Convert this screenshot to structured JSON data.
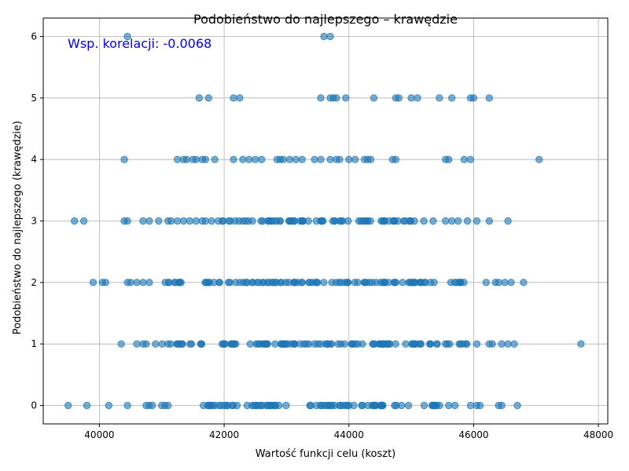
{
  "chart_data": {
    "type": "scatter",
    "title": "Podobieństwo do najlepszego – krawędzie",
    "xlabel": "Wartość funkcji celu (koszt)",
    "ylabel": "Podobieństwo do najlepszego (krawędzie)",
    "xlim": [
      39100,
      48150
    ],
    "ylim": [
      -0.3,
      6.3
    ],
    "xticks": [
      40000,
      42000,
      44000,
      46000,
      48000
    ],
    "xtick_labels": [
      "40000",
      "42000",
      "44000",
      "46000",
      "48000"
    ],
    "yticks": [
      0,
      1,
      2,
      3,
      4,
      5,
      6
    ],
    "ytick_labels": [
      "0",
      "1",
      "2",
      "3",
      "4",
      "5",
      "6"
    ],
    "grid": true,
    "annotation": "Wsp. korelacji: -0.0068",
    "colors": {
      "point": "#1f77b4",
      "annotation": "#0000ff",
      "grid": "#b0b0b0"
    },
    "bands": [
      {
        "y": 0,
        "ranges": [
          [
            41500,
            43000
          ],
          [
            43300,
            44100
          ],
          [
            44200,
            45000
          ],
          [
            45200,
            45500
          ]
        ],
        "points": [
          39500,
          39800,
          40150,
          40450,
          40750,
          40800,
          40850,
          41000,
          41050,
          41100,
          45600,
          45700,
          45950,
          46050,
          46100,
          46400,
          46450,
          46700
        ]
      },
      {
        "y": 1,
        "ranges": [
          [
            41000,
            41500
          ],
          [
            41600,
            45900
          ]
        ],
        "points": [
          40350,
          40600,
          40700,
          40750,
          40900,
          46050,
          46250,
          46300,
          46450,
          46550,
          46650,
          47720
        ]
      },
      {
        "y": 2,
        "ranges": [
          [
            41000,
            41400
          ],
          [
            41600,
            45400
          ],
          [
            45600,
            45900
          ]
        ],
        "points": [
          39900,
          40050,
          40100,
          40450,
          40500,
          40600,
          40700,
          40800,
          46200,
          46350,
          46400,
          46500,
          46600,
          46800
        ]
      },
      {
        "y": 3,
        "ranges": [
          [
            41900,
            43600
          ],
          [
            43700,
            45000
          ]
        ],
        "points": [
          39600,
          39750,
          40400,
          40450,
          40700,
          40800,
          40950,
          41100,
          41150,
          41250,
          41350,
          41450,
          41550,
          41650,
          41700,
          41800,
          45050,
          45200,
          45350,
          45550,
          45650,
          45750,
          45900,
          46050,
          46250,
          46550
        ]
      },
      {
        "y": 4,
        "ranges": [],
        "points": [
          40400,
          41250,
          41350,
          41400,
          41500,
          41550,
          41650,
          41700,
          41850,
          42150,
          42300,
          42400,
          42500,
          42600,
          42850,
          42900,
          42950,
          43050,
          43150,
          43250,
          43450,
          43550,
          43700,
          43800,
          43850,
          44000,
          44100,
          44250,
          44300,
          44350,
          44700,
          44750,
          45550,
          45600,
          45850,
          45950,
          47050
        ]
      },
      {
        "y": 5,
        "ranges": [],
        "points": [
          41600,
          41750,
          42150,
          42250,
          43550,
          43700,
          43750,
          43800,
          43950,
          44400,
          44750,
          44800,
          45000,
          45100,
          45450,
          45650,
          45950,
          46000,
          46250
        ]
      },
      {
        "y": 6,
        "ranges": [],
        "points": [
          40450,
          43600,
          43700
        ]
      }
    ]
  }
}
